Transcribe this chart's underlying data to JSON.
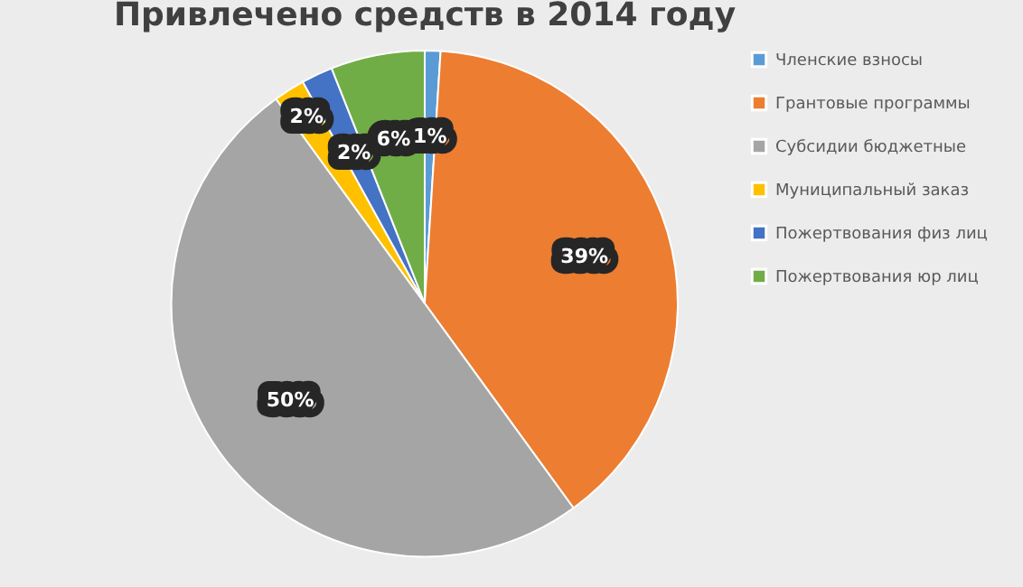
{
  "chart_data": {
    "type": "pie",
    "title": "Привлечено средств в 2014 году",
    "categories": [
      "Членские взносы",
      "Грантовые программы",
      "Субсидии бюджетные",
      "Муниципальный заказ",
      "Пожертвования физ лиц",
      "Пожертвования юр лиц"
    ],
    "values": [
      1,
      39,
      50,
      2,
      2,
      6
    ],
    "colors": [
      "#5b9bd5",
      "#ed7d31",
      "#a5a5a5",
      "#ffc000",
      "#4472c4",
      "#70ad47"
    ],
    "value_labels": [
      "1%",
      "39%",
      "50%",
      "2%",
      "2%",
      "6%"
    ],
    "legend": "right"
  }
}
